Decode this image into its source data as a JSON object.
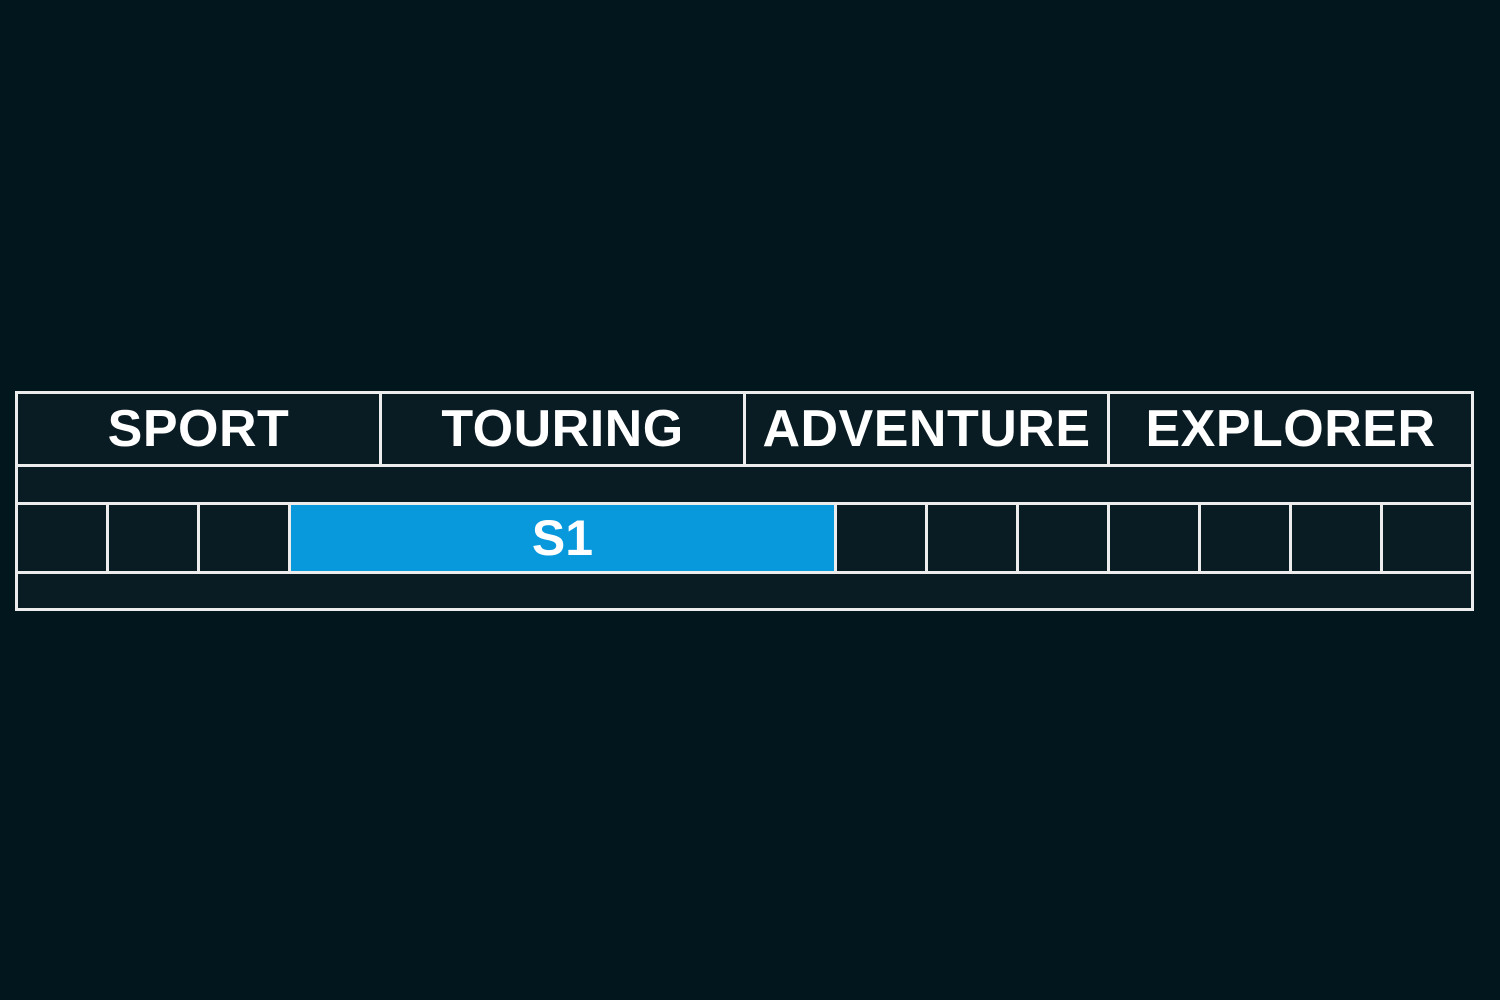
{
  "header": {
    "labels": [
      "SPORT",
      "TOURING",
      "ADVENTURE",
      "EXPLORER"
    ]
  },
  "bar": {
    "label": "S1"
  },
  "colors": {
    "background": "#02161d",
    "cell_fill": "#0a1c23",
    "grid_line": "#ececec",
    "bar_blue": "#0899dc",
    "text": "#ffffff"
  },
  "chart_data": {
    "type": "bar",
    "subtype": "horizontal-range-bar",
    "title": "",
    "xlabel": "",
    "ylabel": "",
    "categories": [
      "SPORT",
      "TOURING",
      "ADVENTURE",
      "EXPLORER"
    ],
    "axis": {
      "total_segments": 16,
      "segments_per_category": 4,
      "range_category_units": [
        0,
        4
      ]
    },
    "series": [
      {
        "name": "S1",
        "start_segment": 4,
        "end_segment": 9,
        "span_segments": 6,
        "start_category_units": 0.75,
        "end_category_units": 2.25,
        "covers": "last quarter of SPORT, all of TOURING, first quarter of ADVENTURE",
        "color": "#0899dc"
      }
    ],
    "legend_position": "none",
    "grid": "on"
  }
}
